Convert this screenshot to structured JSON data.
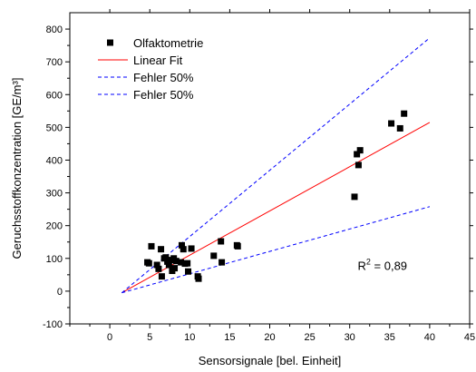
{
  "chart_data": {
    "type": "scatter",
    "xlabel": "Sensorsignale [bel. Einheit]",
    "ylabel": "Geruchsstoffkonzentration [GE/m³]",
    "xlim": [
      -5,
      45
    ],
    "ylim": [
      -100,
      850
    ],
    "xticks": [
      0,
      5,
      10,
      15,
      20,
      25,
      30,
      35,
      40,
      45
    ],
    "yticks": [
      -100,
      0,
      100,
      200,
      300,
      400,
      500,
      600,
      700,
      800
    ],
    "grid": false,
    "legend_position": "top-left",
    "series": [
      {
        "name": "Olfaktometrie",
        "kind": "scatter",
        "marker": "square",
        "color": "#000000",
        "points": [
          [
            4.7,
            88
          ],
          [
            4.9,
            85
          ],
          [
            5.2,
            137
          ],
          [
            5.9,
            80
          ],
          [
            6.1,
            68
          ],
          [
            6.4,
            128
          ],
          [
            6.5,
            45
          ],
          [
            6.8,
            100
          ],
          [
            7.0,
            103
          ],
          [
            7.2,
            90
          ],
          [
            7.4,
            80
          ],
          [
            7.6,
            95
          ],
          [
            7.8,
            62
          ],
          [
            8.0,
            100
          ],
          [
            8.1,
            70
          ],
          [
            8.3,
            92
          ],
          [
            8.9,
            88
          ],
          [
            9.0,
            140
          ],
          [
            9.2,
            128
          ],
          [
            9.4,
            84
          ],
          [
            9.7,
            85
          ],
          [
            9.8,
            60
          ],
          [
            10.2,
            130
          ],
          [
            11.0,
            45
          ],
          [
            11.1,
            38
          ],
          [
            13.0,
            108
          ],
          [
            13.9,
            152
          ],
          [
            14.0,
            88
          ],
          [
            15.9,
            140
          ],
          [
            16.0,
            137
          ],
          [
            30.6,
            288
          ],
          [
            30.9,
            418
          ],
          [
            31.1,
            385
          ],
          [
            31.3,
            430
          ],
          [
            35.2,
            512
          ],
          [
            36.3,
            497
          ],
          [
            36.8,
            542
          ]
        ]
      },
      {
        "name": "Linear Fit",
        "kind": "line",
        "color": "#ff0000",
        "dash": "solid",
        "points": [
          [
            1.5,
            -5
          ],
          [
            40,
            515
          ]
        ]
      },
      {
        "name": "Fehler 50%",
        "kind": "line",
        "color": "#0000ff",
        "dash": "dashed",
        "points": [
          [
            1.5,
            -5
          ],
          [
            40,
            773
          ]
        ]
      },
      {
        "name": "Fehler 50%",
        "kind": "line",
        "color": "#0000ff",
        "dash": "dashed",
        "points": [
          [
            1.5,
            -5
          ],
          [
            40,
            258
          ]
        ]
      }
    ],
    "annotation": {
      "base": "R",
      "sup": "2",
      "rest": " = 0,89",
      "x": 31,
      "y": 65
    }
  }
}
